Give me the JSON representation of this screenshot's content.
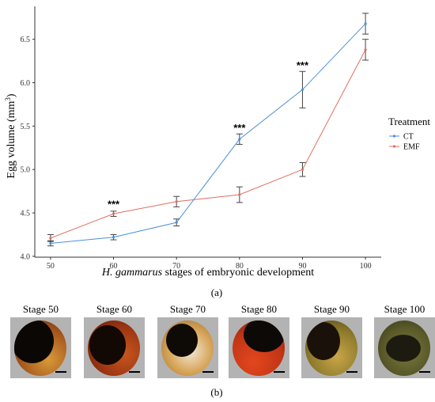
{
  "chart_data": {
    "type": "line",
    "xlabel_italic": "H. gammarus",
    "xlabel_rest": " stages of embryonic development",
    "ylabel_main": "Egg volume (mm",
    "ylabel_sup": "3",
    "ylabel_close": ")",
    "x": [
      50,
      60,
      70,
      80,
      90,
      100
    ],
    "xlim": [
      47.5,
      102.5
    ],
    "ylim": [
      3.99,
      6.88
    ],
    "yticks": [
      4.0,
      4.5,
      5.0,
      5.5,
      6.0,
      6.5
    ],
    "ytick_labels": [
      "4.0",
      "4.5",
      "5.0",
      "5.5",
      "6.0",
      "6.5"
    ],
    "xtick_labels": [
      "50",
      "60",
      "70",
      "80",
      "90",
      "100"
    ],
    "legend": {
      "title": "Treatment",
      "position": "right"
    },
    "series": [
      {
        "name": "CT",
        "color": "#4a90d9",
        "values": [
          4.15,
          4.22,
          4.39,
          5.35,
          5.92,
          6.68
        ],
        "err": [
          0.03,
          0.03,
          0.04,
          0.06,
          0.21,
          0.12
        ]
      },
      {
        "name": "EMF",
        "color": "#e07060",
        "values": [
          4.21,
          4.49,
          4.63,
          4.71,
          5.0,
          6.38
        ],
        "err": [
          0.04,
          0.03,
          0.06,
          0.09,
          0.08,
          0.12
        ]
      }
    ],
    "annotations": [
      {
        "x": 60,
        "y": 4.56,
        "text": "***"
      },
      {
        "x": 80,
        "y": 5.44,
        "text": "***"
      },
      {
        "x": 90,
        "y": 6.16,
        "text": "***"
      }
    ]
  },
  "panel_a_label": "(a)",
  "panel_b_label": "(b)",
  "stages": [
    {
      "label": "Stage 50"
    },
    {
      "label": "Stage 60"
    },
    {
      "label": "Stage 70"
    },
    {
      "label": "Stage 80"
    },
    {
      "label": "Stage 90"
    },
    {
      "label": "Stage 100"
    }
  ]
}
